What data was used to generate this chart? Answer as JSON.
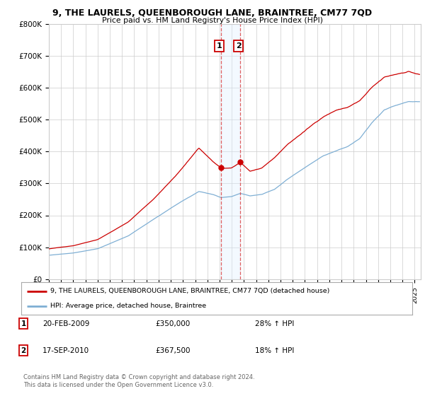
{
  "title": "9, THE LAURELS, QUEENBOROUGH LANE, BRAINTREE, CM77 7QD",
  "subtitle": "Price paid vs. HM Land Registry's House Price Index (HPI)",
  "ylabel_ticks": [
    "£0",
    "£100K",
    "£200K",
    "£300K",
    "£400K",
    "£500K",
    "£600K",
    "£700K",
    "£800K"
  ],
  "ytick_vals": [
    0,
    100000,
    200000,
    300000,
    400000,
    500000,
    600000,
    700000,
    800000
  ],
  "ylim": [
    0,
    800000
  ],
  "xlim_start": 1995.0,
  "xlim_end": 2025.5,
  "sale1_x": 2009.13,
  "sale1_y": 350000,
  "sale1_label": "1",
  "sale2_x": 2010.71,
  "sale2_y": 367500,
  "sale2_label": "2",
  "legend_line1": "9, THE LAURELS, QUEENBOROUGH LANE, BRAINTREE, CM77 7QD (detached house)",
  "legend_line2": "HPI: Average price, detached house, Braintree",
  "table_row1": [
    "1",
    "20-FEB-2009",
    "£350,000",
    "28% ↑ HPI"
  ],
  "table_row2": [
    "2",
    "17-SEP-2010",
    "£367,500",
    "18% ↑ HPI"
  ],
  "footer": "Contains HM Land Registry data © Crown copyright and database right 2024.\nThis data is licensed under the Open Government Licence v3.0.",
  "red_color": "#cc0000",
  "blue_color": "#7fafd4",
  "bg_color": "#ffffff",
  "grid_color": "#cccccc",
  "dashed_color": "#dd4444",
  "span_color": "#ddeeff",
  "label_box_color": "#cc0000"
}
